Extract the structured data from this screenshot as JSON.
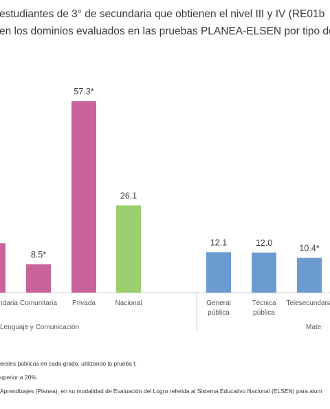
{
  "chart_data": {
    "type": "bar",
    "title": [
      "estudiantes de 3° de secundaria que obtienen el nivel III y IV  (RE01b",
      "en los dominios evaluados en las pruebas PLANEA-ELSEN por tipo de"
    ],
    "categories": [
      [
        "ndaria"
      ],
      [
        "Comunitaria"
      ],
      [
        "Privada"
      ],
      [
        "Nacional"
      ],
      [
        "General",
        "pública"
      ],
      [
        "Técnica",
        "pública"
      ],
      [
        "Telesecundaria"
      ]
    ],
    "values": [
      14.8,
      8.5,
      57.3,
      26.1,
      12.1,
      12.0,
      10.4
    ],
    "value_labels": [
      "*",
      "8.5*",
      "57.3*",
      "26.1",
      "12.1",
      "12.0",
      "10.4*"
    ],
    "colors": [
      "#c9649a",
      "#c9649a",
      "#c9649a",
      "#9bcf6e",
      "#6b9bd0",
      "#6b9bd0",
      "#6b9bd0"
    ],
    "groups": [
      "Lenguaje y Comunicación",
      "Mate"
    ],
    "footnotes": [
      "erales públicas en cada grado, utilizando la prueba t.",
      "uperior a 20%.",
      "Aprendizajes (Planea), en su modalidad de Evaluación del Logro referida al Sistema Educativo Nacional (ELSEN) para alum"
    ]
  }
}
